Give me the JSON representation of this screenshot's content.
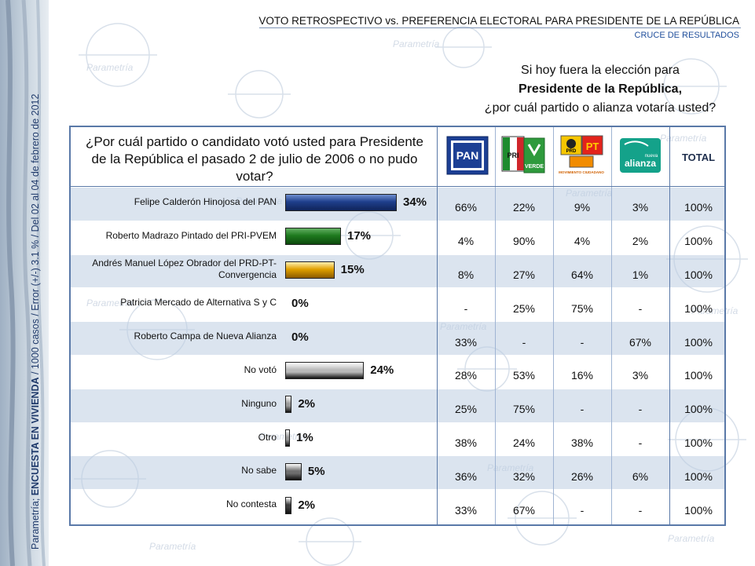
{
  "header": {
    "title": "VOTO RETROSPECTIVO vs. PREFERENCIA ELECTORAL PARA PRESIDENTE DE LA REPÚBLICA",
    "subtitle": "CRUCE DE RESULTADOS"
  },
  "side_note": {
    "prefix": "Parametría; ",
    "bold": "ENCUESTA EN VIVIENDA",
    "suffix": " / 1000 casos / Error (+/-) 3.1 % / Del 02 al 04 de febrero de 2012"
  },
  "right_question": {
    "line1": "Si hoy fuera la elección para",
    "line2": "Presidente de la República,",
    "line3": "¿por cuál partido o alianza votaría usted?"
  },
  "left_question": "¿Por cuál partido o candidato votó usted para Presidente de la República el pasado 2 de julio de 2006 o no pudo votar?",
  "logos": {
    "pan": "PAN",
    "pri_verde": "PRI VERDE",
    "prd_pt": "PRD PT MOVIMIENTO CIUDADANO",
    "alianza": "nueva alianza"
  },
  "logo_text": {
    "pan": "PAN",
    "verde": "VERDE",
    "pt": "PT",
    "prd": "PRD",
    "mc": "MOVIMIENTO CIUDADANO",
    "nueva": "nueva",
    "alianza": "alianza"
  },
  "total_header": "TOTAL",
  "chart_data": {
    "type": "bar",
    "categories": [
      "Felipe Calderón Hinojosa del PAN",
      "Roberto Madrazo Pintado del PRI-PVEM",
      "Andrés Manuel López Obrador del PRD-PT-Convergencia",
      "Patricia Mercado de Alternativa S y C",
      "Roberto Campa de Nueva Alianza",
      "No votó",
      "Ninguno",
      "Otro",
      "No sabe",
      "No contesta"
    ],
    "values": [
      34,
      17,
      15,
      0,
      0,
      24,
      2,
      1,
      5,
      2
    ],
    "value_labels": [
      "34%",
      "17%",
      "15%",
      "0%",
      "0%",
      "24%",
      "2%",
      "1%",
      "5%",
      "2%"
    ],
    "colors": [
      "#1f3f8c",
      "#1e7a1e",
      "#e0a000",
      "#888888",
      "#888888",
      "#b9b9b9",
      "#9a9a9a",
      "#9a9a9a",
      "#6e6e6e",
      "#3c3c3c"
    ],
    "xlim": [
      0,
      34
    ]
  },
  "cross_table": {
    "columns": [
      "PAN",
      "PRI-VERDE",
      "PRD-PT-MC",
      "Nueva Alianza",
      "TOTAL"
    ],
    "rows": [
      [
        "66%",
        "22%",
        "9%",
        "3%",
        "100%"
      ],
      [
        "4%",
        "90%",
        "4%",
        "2%",
        "100%"
      ],
      [
        "8%",
        "27%",
        "64%",
        "1%",
        "100%"
      ],
      [
        "-",
        "25%",
        "75%",
        "-",
        "100%"
      ],
      [
        "33%",
        "-",
        "-",
        "67%",
        "100%"
      ],
      [
        "28%",
        "53%",
        "16%",
        "3%",
        "100%"
      ],
      [
        "25%",
        "75%",
        "-",
        "-",
        "100%"
      ],
      [
        "38%",
        "24%",
        "38%",
        "-",
        "100%"
      ],
      [
        "36%",
        "32%",
        "26%",
        "6%",
        "100%"
      ],
      [
        "33%",
        "67%",
        "-",
        "-",
        "100%"
      ]
    ]
  },
  "watermark": "Parametría"
}
